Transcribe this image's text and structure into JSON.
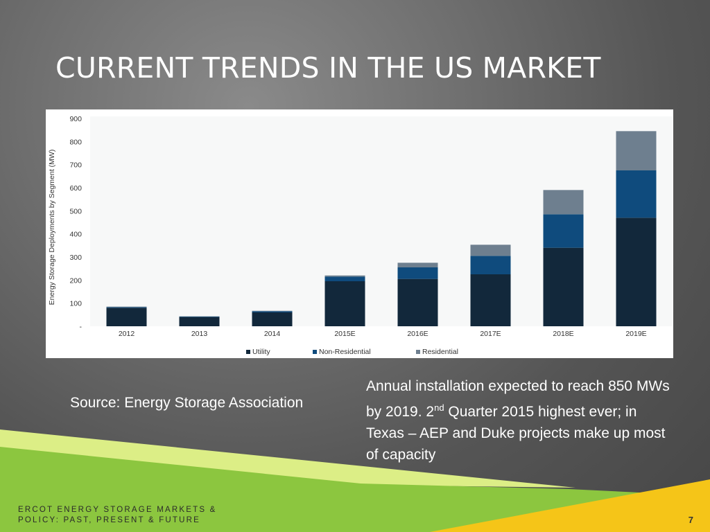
{
  "slide": {
    "title": "CURRENT TRENDS IN THE US MARKET",
    "source": "Source: Energy Storage Association",
    "annotation_part1": "Annual installation expected to reach 850 MWs by 2019. 2",
    "annotation_sup": "nd",
    "annotation_part2": " Quarter 2015 highest ever; in Texas – AEP and Duke projects make up most of capacity",
    "footer_line1": "ERCOT ENERGY STORAGE MARKETS &",
    "footer_line2": "POLICY: PAST, PRESENT & FUTURE",
    "page_number": "7"
  },
  "colors": {
    "utility": "#12283b",
    "non_residential": "#0f4b7d",
    "residential": "#6e7f8f",
    "stripe_green_light": "#c8e15a",
    "stripe_green": "#8cc63f",
    "stripe_yellow": "#f5c518"
  },
  "chart_data": {
    "type": "bar",
    "stacked": true,
    "categories": [
      "2012",
      "2013",
      "2014",
      "2015E",
      "2016E",
      "2017E",
      "2018E",
      "2019E"
    ],
    "series": [
      {
        "name": "Utility",
        "values": [
          80,
          40,
          60,
          195,
          205,
          225,
          340,
          470
        ]
      },
      {
        "name": "Non-Residential",
        "values": [
          3,
          2,
          5,
          20,
          50,
          80,
          145,
          205
        ]
      },
      {
        "name": "Residential",
        "values": [
          2,
          1,
          2,
          5,
          20,
          48,
          105,
          170
        ]
      }
    ],
    "ylabel": "Energy Storage Deployments by Segment (MW)",
    "ylim": [
      0,
      900
    ],
    "yticks": [
      0,
      100,
      200,
      300,
      400,
      500,
      600,
      700,
      800,
      900
    ],
    "ytick_labels": [
      "-",
      "100",
      "200",
      "300",
      "400",
      "500",
      "600",
      "700",
      "800",
      "900"
    ],
    "legend_position": "bottom",
    "grid": false
  }
}
